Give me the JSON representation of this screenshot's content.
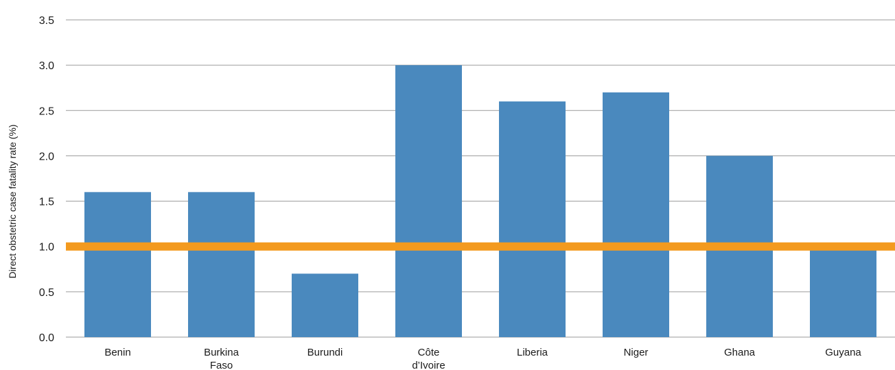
{
  "chart_data": {
    "type": "bar",
    "title": "",
    "xlabel": "",
    "ylabel": "Direct obstetric case fatality rate (%)",
    "categories": [
      [
        "Benin"
      ],
      [
        "Burkina",
        "Faso"
      ],
      [
        "Burundi"
      ],
      [
        "Côte",
        "d’Ivoire"
      ],
      [
        "Liberia"
      ],
      [
        "Niger"
      ],
      [
        "Ghana"
      ],
      [
        "Guyana"
      ]
    ],
    "values": [
      1.6,
      1.6,
      0.7,
      3.0,
      2.6,
      2.7,
      2.0,
      1.0
    ],
    "ylim": [
      0,
      3.5
    ],
    "yticks": [
      "0.0",
      "0.5",
      "1.0",
      "1.5",
      "2.0",
      "2.5",
      "3.0",
      "3.5"
    ],
    "reference_line": 1.0,
    "grid": true,
    "colors": {
      "bar": "#4a89be",
      "reference_line": "#f39a1f",
      "grid": "#9a9a9a"
    }
  }
}
